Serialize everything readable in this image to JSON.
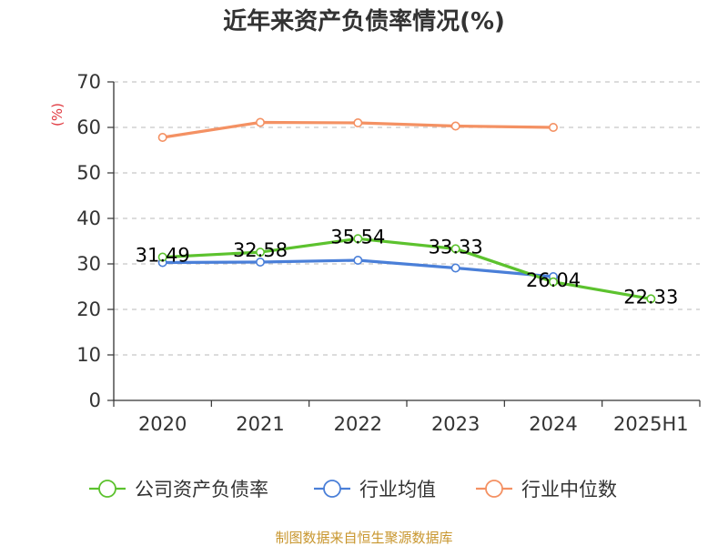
{
  "chart_data": {
    "type": "line",
    "title": "近年来资产负债率情况(%)",
    "ylabel": "(%)",
    "categories": [
      "2020",
      "2021",
      "2022",
      "2023",
      "2024",
      "2025H1"
    ],
    "ylim": [
      0,
      70
    ],
    "yticks": [
      "0",
      "10",
      "20",
      "30",
      "40",
      "50",
      "60",
      "70"
    ],
    "grid": true,
    "legend_position": "bottom",
    "series": [
      {
        "name": "公司资产负债率",
        "color": "#5cc22e",
        "values": [
          31.49,
          32.58,
          35.54,
          33.33,
          26.04,
          22.33
        ],
        "labels": [
          "31.49",
          "32.58",
          "35.54",
          "33.33",
          "26.04",
          "22.33"
        ]
      },
      {
        "name": "行业均值",
        "color": "#4a7fd8",
        "values": [
          30.3,
          30.4,
          30.8,
          29.1,
          27.2,
          null
        ]
      },
      {
        "name": "行业中位数",
        "color": "#f49163",
        "values": [
          57.8,
          61.1,
          61.0,
          60.3,
          60.0,
          null
        ]
      }
    ],
    "source": "制图数据来自恒生聚源数据库"
  }
}
